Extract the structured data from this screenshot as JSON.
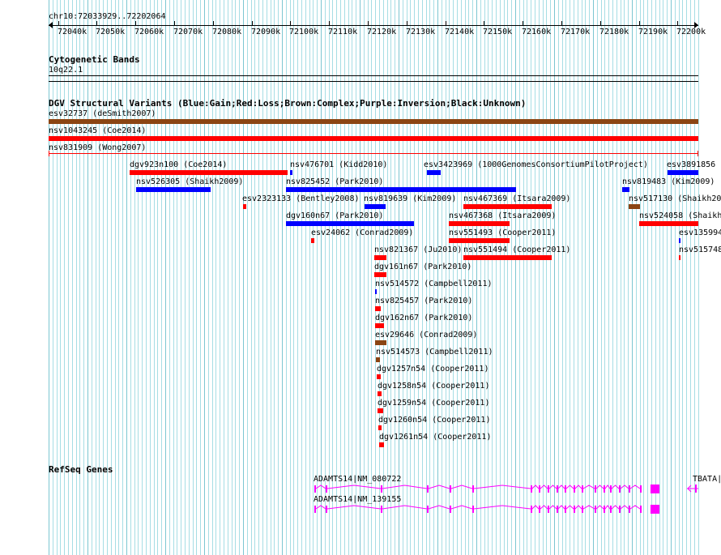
{
  "ruler": {
    "position": "chr10:72033929..72202064",
    "ticks": [
      "72040k",
      "72050k",
      "72060k",
      "72070k",
      "72080k",
      "72090k",
      "72100k",
      "72110k",
      "72120k",
      "72130k",
      "72140k",
      "72150k",
      "72160k",
      "72170k",
      "72180k",
      "72190k",
      "72200k"
    ]
  },
  "cytoband": {
    "title": "Cytogenetic Bands",
    "band": "10q22.1"
  },
  "dgv": {
    "title": "DGV Structural Variants (Blue:Gain;Red:Loss;Brown:Complex;Purple:Inversion;Black:Unknown)",
    "colors": {
      "gain": "#0000ff",
      "loss": "#ff0000",
      "complex": "#8b4513",
      "inversion": "#800080",
      "unknown": "#000000"
    },
    "features": [
      {
        "label": "esv32737 (deSmith2007)",
        "type": "complex"
      },
      {
        "label": "nsv1043245 (Coe2014)",
        "type": "loss"
      },
      {
        "label": "nsv831909 (Wong2007)",
        "type": "loss"
      },
      {
        "label": "dgv923n100 (Coe2014)",
        "type": "loss"
      },
      {
        "label": "nsv476701 (Kidd2010)",
        "type": "gain"
      },
      {
        "label": "esv3423969 (1000GenomesConsortiumPilotProject)",
        "type": "gain"
      },
      {
        "label": "esv3891856",
        "type": "gain"
      },
      {
        "label": "nsv526305 (Shaikh2009)",
        "type": "gain"
      },
      {
        "label": "nsv825452 (Park2010)",
        "type": "gain"
      },
      {
        "label": "nsv819483 (Kim2009)",
        "type": "gain"
      },
      {
        "label": "esv2323133 (Bentley2008)",
        "type": "loss"
      },
      {
        "label": "nsv819639 (Kim2009)",
        "type": "gain"
      },
      {
        "label": "nsv467369 (Itsara2009)",
        "type": "loss"
      },
      {
        "label": "nsv517130 (Shaikh20",
        "type": "complex"
      },
      {
        "label": "dgv160n67 (Park2010)",
        "type": "gain"
      },
      {
        "label": "nsv467368 (Itsara2009)",
        "type": "loss"
      },
      {
        "label": "nsv524058 (Shaikh",
        "type": "loss"
      },
      {
        "label": "esv24062 (Conrad2009)",
        "type": "loss"
      },
      {
        "label": "nsv551493 (Cooper2011)",
        "type": "loss"
      },
      {
        "label": "esv135994",
        "type": "gain"
      },
      {
        "label": "nsv821367 (Ju2010)",
        "type": "loss"
      },
      {
        "label": "nsv551494 (Cooper2011)",
        "type": "loss"
      },
      {
        "label": "nsv515748",
        "type": "loss"
      },
      {
        "label": "dgv161n67 (Park2010)",
        "type": "loss"
      },
      {
        "label": "nsv514572 (Campbell2011)",
        "type": "gain"
      },
      {
        "label": "nsv825457 (Park2010)",
        "type": "loss"
      },
      {
        "label": "dgv162n67 (Park2010)",
        "type": "loss"
      },
      {
        "label": "esv29646 (Conrad2009)",
        "type": "complex"
      },
      {
        "label": "nsv514573 (Campbell2011)",
        "type": "complex"
      },
      {
        "label": "dgv1257n54 (Cooper2011)",
        "type": "loss"
      },
      {
        "label": "dgv1258n54 (Cooper2011)",
        "type": "loss"
      },
      {
        "label": "dgv1259n54 (Cooper2011)",
        "type": "loss"
      },
      {
        "label": "dgv1260n54 (Cooper2011)",
        "type": "loss"
      },
      {
        "label": "dgv1261n54 (Cooper2011)",
        "type": "loss"
      }
    ]
  },
  "refseq": {
    "title": "RefSeq Genes",
    "color": "#ff00ff",
    "genes": [
      {
        "label": "ADAMTS14|NM_080722"
      },
      {
        "label": "ADAMTS14|NM_139155"
      },
      {
        "label": "TBATA|"
      }
    ]
  }
}
